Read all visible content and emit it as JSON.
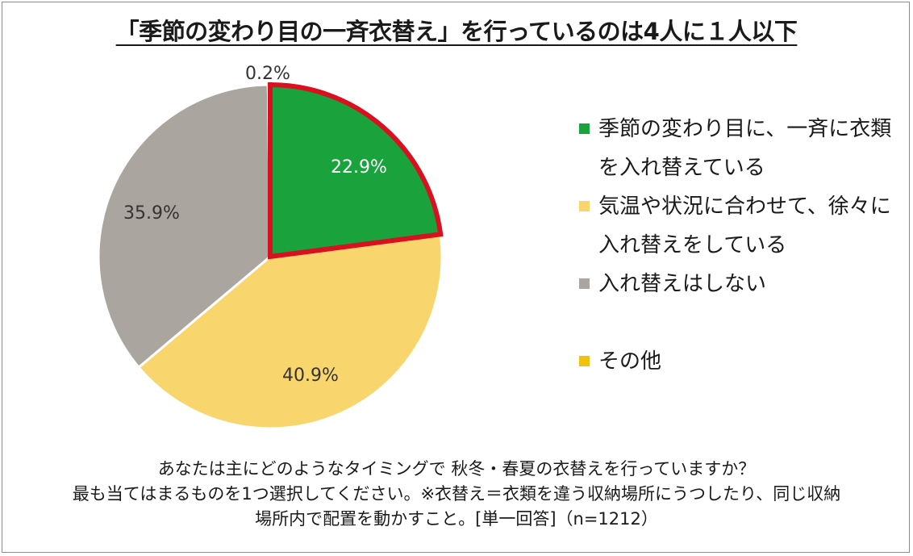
{
  "title": "「季節の変わり目の一斉衣替え」を行っているのは4人に１人以下",
  "chart_data": {
    "type": "pie",
    "slices": [
      {
        "label": "季節の変わり目に、一斉に衣類を入れ替えている",
        "label_lines": [
          "季節の変わり目に、一斉に衣類",
          "を入れ替えている"
        ],
        "value": 22.9,
        "display": "22.9%",
        "color": "#1aa33c",
        "label_color": "#ffffff",
        "highlighted": true
      },
      {
        "label": "気温や状況に合わせて、徐々に入れ替えをしている",
        "label_lines": [
          "気温や状況に合わせて、徐々に",
          "入れ替えをしている"
        ],
        "value": 40.9,
        "display": "40.9%",
        "color": "#f9d56d",
        "label_color": "#333333",
        "highlighted": false
      },
      {
        "label": "入れ替えはしない",
        "label_lines": [
          "入れ替えはしない"
        ],
        "value": 35.9,
        "display": "35.9%",
        "color": "#aba5a0",
        "label_color": "#333333",
        "highlighted": false
      },
      {
        "label": "その他",
        "label_lines": [
          "その他"
        ],
        "value": 0.2,
        "display": "0.2%",
        "color": "#f2c10f",
        "label_color": "#333333",
        "highlighted": false
      }
    ],
    "highlight_color": "#d8101f",
    "start_angle": "12 o'clock",
    "direction": "clockwise"
  },
  "footer": {
    "line1": "あなたは主にどのようなタイミングで 秋冬・春夏の衣替えを行っていますか？",
    "line2": "最も当てはまるものを1つ選択してください。※衣替え＝衣類を違う収納場所にうつしたり、同じ収納",
    "line3": "場所内で配置を動かすこと。[単一回答]（n=1212）"
  }
}
